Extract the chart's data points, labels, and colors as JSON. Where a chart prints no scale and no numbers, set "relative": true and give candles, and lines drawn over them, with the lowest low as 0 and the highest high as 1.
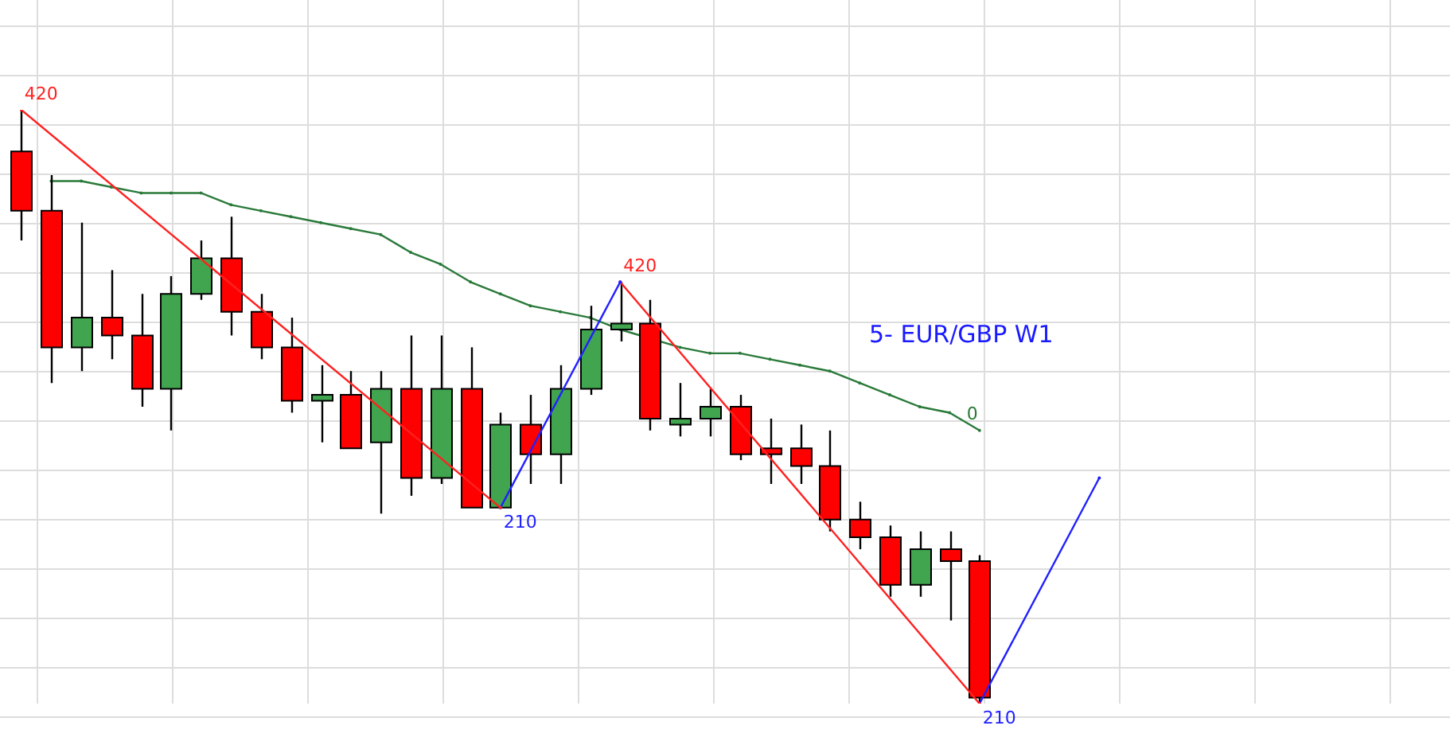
{
  "chart_data": {
    "type": "candlestick",
    "relative": true,
    "grid": true,
    "legend": false,
    "annotations": [
      "5- EUR/GBP W1",
      "420",
      "210",
      "420",
      "210",
      "0"
    ],
    "categories": [
      null,
      null,
      null,
      null,
      null,
      null,
      null,
      null,
      null,
      null,
      null,
      null,
      null,
      null,
      null,
      null,
      null,
      null,
      null,
      null,
      null,
      null,
      null,
      null,
      null,
      null,
      null,
      null,
      null,
      null,
      null,
      null,
      null,
      null,
      null,
      null,
      null,
      null,
      null,
      null,
      null,
      null,
      null,
      null,
      null,
      null,
      null,
      null
    ],
    "ohlc": [
      [
        0.93,
        1.0,
        0.78,
        0.83
      ],
      [
        0.83,
        0.89,
        0.54,
        0.6
      ],
      [
        0.6,
        0.81,
        0.56,
        0.65
      ],
      [
        0.65,
        0.73,
        0.58,
        0.62
      ],
      [
        0.62,
        0.69,
        0.5,
        0.53
      ],
      [
        0.53,
        0.72,
        0.46,
        0.69
      ],
      [
        0.69,
        0.78,
        0.68,
        0.75
      ],
      [
        0.75,
        0.82,
        0.62,
        0.66
      ],
      [
        0.66,
        0.69,
        0.58,
        0.6
      ],
      [
        0.6,
        0.65,
        0.49,
        0.51
      ],
      [
        0.51,
        0.57,
        0.44,
        0.52
      ],
      [
        0.52,
        0.56,
        0.43,
        0.43
      ],
      [
        0.44,
        0.56,
        0.32,
        0.53
      ],
      [
        0.53,
        0.62,
        0.35,
        0.38
      ],
      [
        0.38,
        0.62,
        0.37,
        0.53
      ],
      [
        0.53,
        0.6,
        0.33,
        0.33
      ],
      [
        0.33,
        0.49,
        0.33,
        0.47
      ],
      [
        0.47,
        0.52,
        0.37,
        0.42
      ],
      [
        0.42,
        0.57,
        0.37,
        0.53
      ],
      [
        0.53,
        0.67,
        0.52,
        0.63
      ],
      [
        0.63,
        0.71,
        0.61,
        0.64
      ],
      [
        0.64,
        0.68,
        0.46,
        0.48
      ],
      [
        0.47,
        0.54,
        0.45,
        0.48
      ],
      [
        0.48,
        0.53,
        0.45,
        0.5
      ],
      [
        0.5,
        0.52,
        0.41,
        0.42
      ],
      [
        0.43,
        0.48,
        0.37,
        0.42
      ],
      [
        0.43,
        0.47,
        0.37,
        0.4
      ],
      [
        0.4,
        0.46,
        0.29,
        0.31
      ],
      [
        0.31,
        0.34,
        0.26,
        0.28
      ],
      [
        0.28,
        0.3,
        0.18,
        0.2
      ],
      [
        0.2,
        0.29,
        0.18,
        0.26
      ],
      [
        0.26,
        0.29,
        0.14,
        0.24
      ],
      [
        0.24,
        0.25,
        0,
        0.01
      ],
      null,
      null,
      null,
      null,
      null,
      null,
      null,
      null,
      null,
      null,
      null,
      null,
      null,
      null,
      null
    ],
    "colors": [
      "#ff0000",
      "#ff0000",
      "#41a44f",
      "#ff0000",
      "#ff0000",
      "#41a44f",
      "#41a44f",
      "#ff0000",
      "#ff0000",
      "#ff0000",
      "#41a44f",
      "#ff0000",
      "#41a44f",
      "#ff0000",
      "#41a44f",
      "#ff0000",
      "#41a44f",
      "#ff0000",
      "#41a44f",
      "#41a44f",
      "#41a44f",
      "#ff0000",
      "#41a44f",
      "#41a44f",
      "#ff0000",
      "#ff0000",
      "#ff0000",
      "#ff0000",
      "#ff0000",
      "#ff0000",
      "#41a44f",
      "#ff0000",
      "#ff0000",
      null,
      null,
      null,
      null,
      null,
      null,
      null,
      null,
      null,
      null,
      null,
      null,
      null,
      null,
      null
    ],
    "series": [
      {
        "type": "line",
        "color": "#2a7a3a",
        "values": [
          null,
          0.88,
          0.88,
          0.87,
          0.86,
          0.86,
          0.86,
          0.84,
          0.83,
          0.82,
          0.81,
          0.8,
          0.79,
          0.76,
          0.74,
          0.71,
          0.69,
          0.67,
          0.66,
          0.65,
          0.63,
          null,
          0.6,
          0.59,
          0.59,
          0.58,
          0.57,
          0.56,
          0.54,
          0.52,
          0.5,
          0.49,
          0.46,
          null,
          null,
          null,
          null,
          null,
          null,
          null,
          null,
          null,
          null,
          null,
          null,
          null,
          null,
          null
        ]
      },
      {
        "type": "line",
        "color": "#ff2020",
        "values": [
          1.0,
          null,
          null,
          null,
          null,
          null,
          null,
          null,
          null,
          null,
          null,
          null,
          null,
          null,
          null,
          null,
          0.33,
          null,
          null,
          null,
          null,
          null,
          null,
          null,
          null,
          null,
          null,
          null,
          null,
          null,
          null,
          null,
          null,
          null,
          null,
          null,
          null,
          null,
          null,
          null,
          null,
          null,
          null,
          null,
          null,
          null,
          null,
          null
        ]
      },
      {
        "type": "line",
        "color": "#2020ff",
        "values": [
          null,
          null,
          null,
          null,
          null,
          null,
          null,
          null,
          null,
          null,
          null,
          null,
          null,
          null,
          null,
          null,
          0.33,
          null,
          null,
          null,
          0.71,
          null,
          null,
          null,
          null,
          null,
          null,
          null,
          null,
          null,
          null,
          null,
          null,
          null,
          null,
          null,
          null,
          null,
          null,
          null,
          null,
          null,
          null,
          null,
          null,
          null,
          null,
          null
        ]
      },
      {
        "type": "line",
        "color": "#ff2020",
        "values": [
          null,
          null,
          null,
          null,
          null,
          null,
          null,
          null,
          null,
          null,
          null,
          null,
          null,
          null,
          null,
          null,
          null,
          null,
          null,
          null,
          0.71,
          null,
          null,
          null,
          null,
          null,
          null,
          null,
          null,
          null,
          null,
          null,
          0,
          null,
          null,
          null,
          null,
          null,
          null,
          null,
          null,
          null,
          null,
          null,
          null,
          null,
          null,
          null
        ]
      },
      {
        "type": "line",
        "color": "#2020ff",
        "values": [
          null,
          null,
          null,
          null,
          null,
          null,
          null,
          null,
          null,
          null,
          null,
          null,
          null,
          null,
          null,
          null,
          null,
          null,
          null,
          null,
          null,
          null,
          null,
          null,
          null,
          null,
          null,
          null,
          null,
          null,
          null,
          null,
          0,
          null,
          null,
          null,
          0.38,
          null,
          null,
          null,
          null,
          null,
          null,
          null,
          null,
          null,
          null,
          null
        ]
      }
    ]
  }
}
